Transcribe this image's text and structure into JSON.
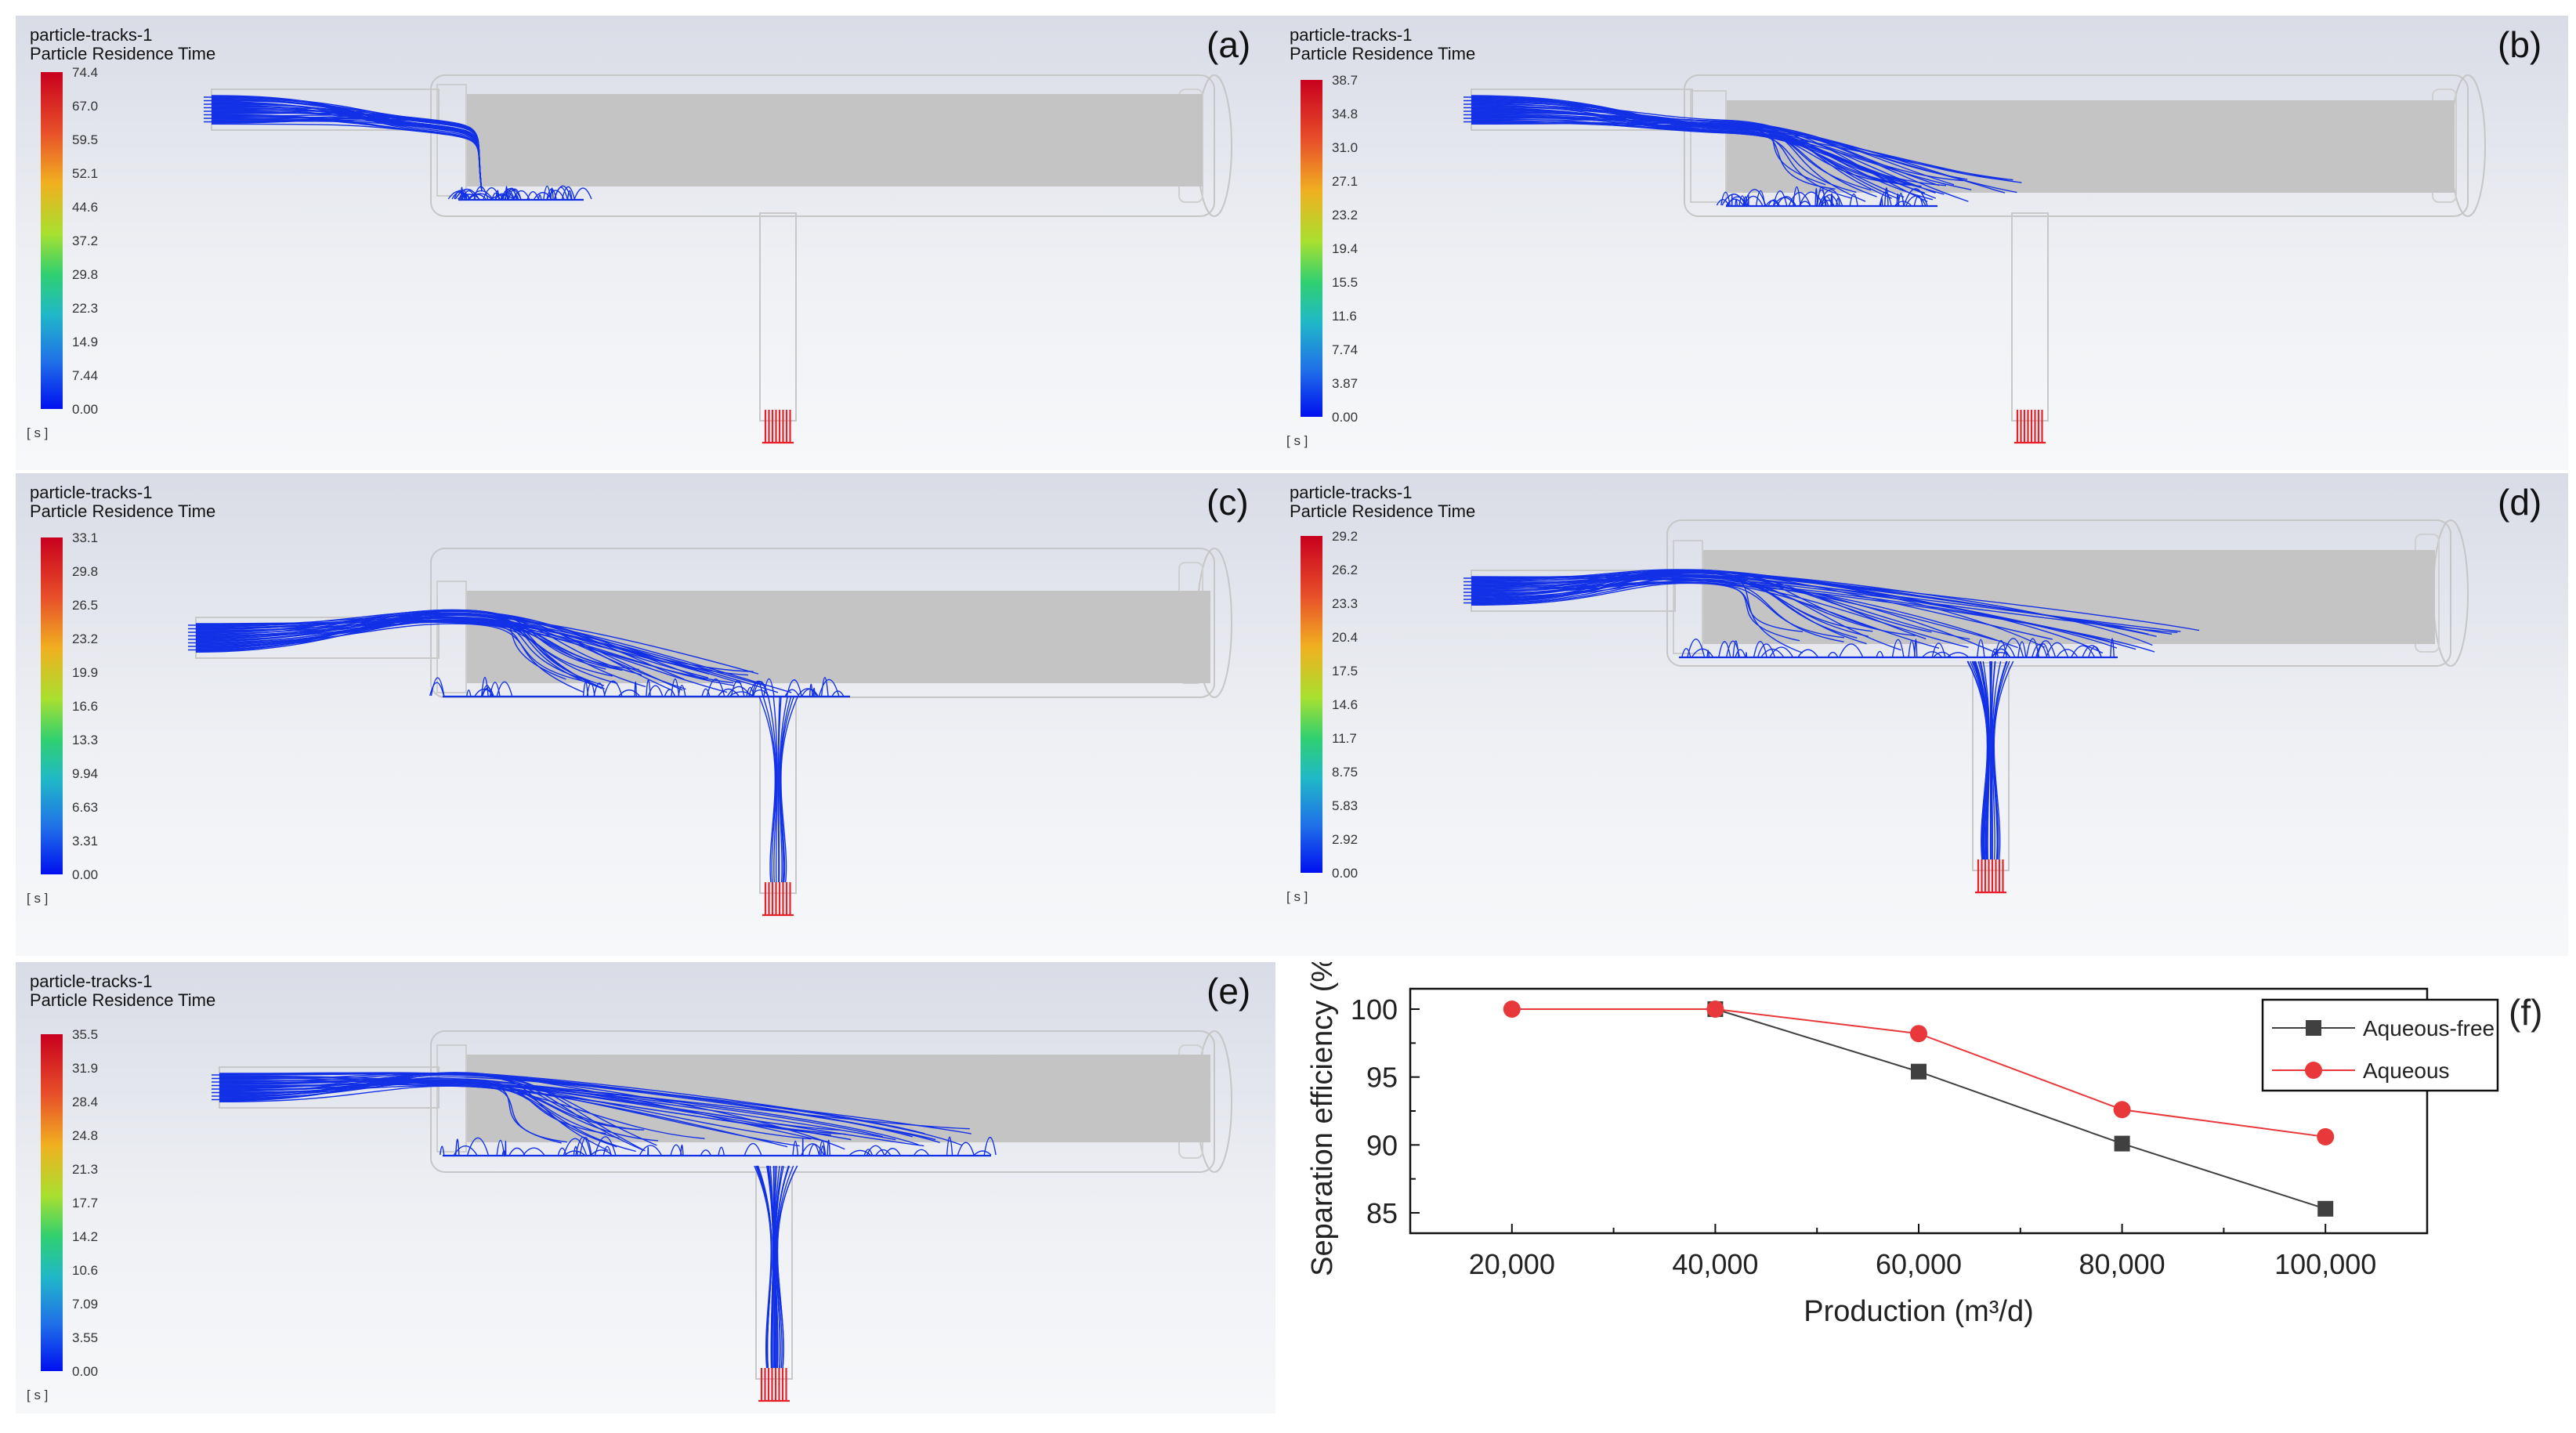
{
  "panels": [
    {
      "id": "a",
      "letter": "(a)",
      "title": "particle-tracks-1",
      "subtitle": "Particle Residence Time",
      "unit": "[ s ]",
      "ticks": [
        "74.4",
        "67.0",
        "59.5",
        "52.1",
        "44.6",
        "37.2",
        "29.8",
        "22.3",
        "14.9",
        "7.44",
        "0.00"
      ],
      "scenario": 1
    },
    {
      "id": "b",
      "letter": "(b)",
      "title": "particle-tracks-1",
      "subtitle": "Particle Residence Time",
      "unit": "[ s ]",
      "ticks": [
        "38.7",
        "34.8",
        "31.0",
        "27.1",
        "23.2",
        "19.4",
        "15.5",
        "11.6",
        "7.74",
        "3.87",
        "0.00"
      ],
      "scenario": 2
    },
    {
      "id": "c",
      "letter": "(c)",
      "title": "particle-tracks-1",
      "subtitle": "Particle Residence Time",
      "unit": "[ s ]",
      "ticks": [
        "33.1",
        "29.8",
        "26.5",
        "23.2",
        "19.9",
        "16.6",
        "13.3",
        "9.94",
        "6.63",
        "3.31",
        "0.00"
      ],
      "scenario": 3
    },
    {
      "id": "d",
      "letter": "(d)",
      "title": "particle-tracks-1",
      "subtitle": "Particle Residence Time",
      "unit": "[ s ]",
      "ticks": [
        "29.2",
        "26.2",
        "23.3",
        "20.4",
        "17.5",
        "14.6",
        "11.7",
        "8.75",
        "5.83",
        "2.92",
        "0.00"
      ],
      "scenario": 4
    },
    {
      "id": "e",
      "letter": "(e)",
      "title": "particle-tracks-1",
      "subtitle": "Particle Residence Time",
      "unit": "[ s ]",
      "ticks": [
        "35.5",
        "31.9",
        "28.4",
        "24.8",
        "21.3",
        "17.7",
        "14.2",
        "10.6",
        "7.09",
        "3.55",
        "0.00"
      ],
      "scenario": 5
    }
  ],
  "chart_letter": "(f)",
  "colors": {
    "aqueous_free": "#404040",
    "aqueous": "#e8383a",
    "tracks": "#1230e6",
    "outlet": "#e8202a"
  },
  "chart_data": {
    "type": "line",
    "xlabel": "Production (m³/d)",
    "ylabel": "Separation efficiency (%)",
    "categories": [
      "20,000",
      "40,000",
      "60,000",
      "80,000",
      "100,000"
    ],
    "x": [
      20000,
      40000,
      60000,
      80000,
      100000
    ],
    "xlim": [
      10000,
      110000
    ],
    "ylim": [
      83.5,
      101.5
    ],
    "yticks": [
      85,
      90,
      95,
      100
    ],
    "grid": false,
    "legend_position": "top-right",
    "series": [
      {
        "name": "Aqueous-free",
        "marker": "square",
        "color": "#404040",
        "x": [
          40000,
          60000,
          80000,
          100000
        ],
        "values": [
          100.0,
          95.4,
          90.1,
          85.3
        ]
      },
      {
        "name": "Aqueous",
        "marker": "circle",
        "color": "#e8383a",
        "x": [
          20000,
          40000,
          60000,
          80000,
          100000
        ],
        "values": [
          100.0,
          100.0,
          98.2,
          92.6,
          90.6
        ]
      }
    ]
  }
}
